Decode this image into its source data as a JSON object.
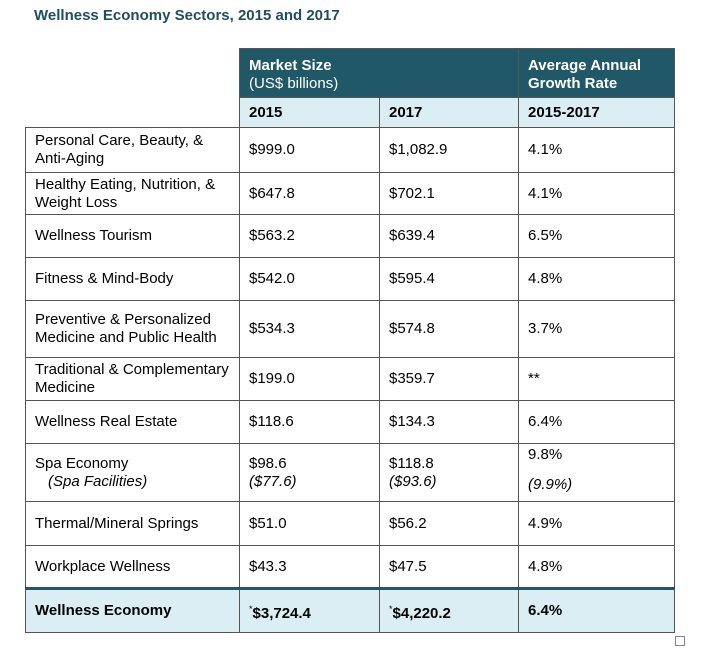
{
  "title": "Wellness Economy Sectors, 2015 and 2017",
  "table": {
    "header": {
      "market_size": "Market Size",
      "market_size_unit": "(US$ billions)",
      "growth": "Average Annual Growth Rate",
      "year_a": "2015",
      "year_b": "2017",
      "period": "2015-2017"
    },
    "rows": [
      {
        "sector": "Personal Care, Beauty, & Anti-Aging",
        "v2015": "$999.0",
        "v2017": "$1,082.9",
        "growth": "4.1%"
      },
      {
        "sector": "Healthy Eating, Nutrition, & Weight Loss",
        "v2015": "$647.8",
        "v2017": "$702.1",
        "growth": "4.1%"
      },
      {
        "sector": "Wellness Tourism",
        "v2015": "$563.2",
        "v2017": "$639.4",
        "growth": "6.5%"
      },
      {
        "sector": "Fitness & Mind-Body",
        "v2015": "$542.0",
        "v2017": "$595.4",
        "growth": "4.8%"
      },
      {
        "sector": "Preventive & Personalized Medicine and Public Health",
        "v2015": "$534.3",
        "v2017": "$574.8",
        "growth": "3.7%"
      },
      {
        "sector": "Traditional & Complementary Medicine",
        "v2015": "$199.0",
        "v2017": "$359.7",
        "growth": "**"
      },
      {
        "sector": "Wellness Real Estate",
        "v2015": "$118.6",
        "v2017": "$134.3",
        "growth": "6.4%"
      },
      {
        "sector": "Spa Economy",
        "sector_sub": "(Spa Facilities)",
        "v2015": "$98.6",
        "v2015_sub": "($77.6)",
        "v2017": "$118.8",
        "v2017_sub": "($93.6)",
        "growth": "9.8%",
        "growth_sub": "(9.9%)"
      },
      {
        "sector": "Thermal/Mineral Springs",
        "v2015": "$51.0",
        "v2017": "$56.2",
        "growth": "4.9%"
      },
      {
        "sector": "Workplace Wellness",
        "v2015": "$43.3",
        "v2017": "$47.5",
        "growth": "4.8%"
      }
    ],
    "total": {
      "sector": "Wellness Economy",
      "note": "*",
      "v2015": "$3,724.4",
      "v2017": "$4,220.2",
      "growth": "6.4%"
    }
  }
}
